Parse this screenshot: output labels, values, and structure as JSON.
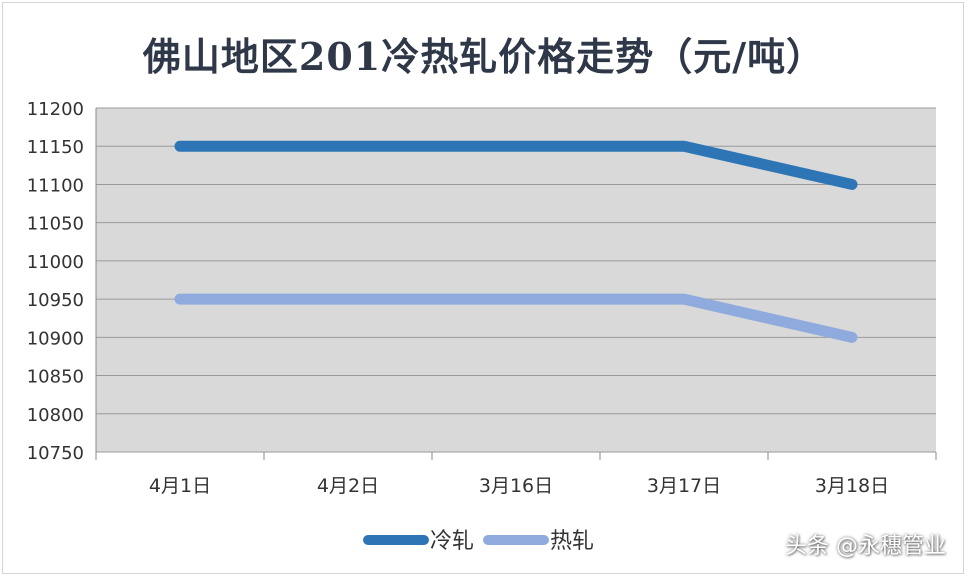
{
  "chart_data": {
    "type": "line",
    "title": "佛山地区201冷热轧价格走势（元/吨）",
    "categories": [
      "4月1日",
      "4月2日",
      "3月16日",
      "3月17日",
      "3月18日"
    ],
    "series": [
      {
        "name": "冷轧",
        "values": [
          11150,
          11150,
          11150,
          11150,
          11100
        ],
        "color": "#2e75b6"
      },
      {
        "name": "热轧",
        "values": [
          10950,
          10950,
          10950,
          10950,
          10900
        ],
        "color": "#8faadc"
      }
    ],
    "ylim": [
      10750,
      11200
    ],
    "yticks": [
      11200,
      11150,
      11100,
      11050,
      11000,
      10950,
      10900,
      10850,
      10800,
      10750
    ],
    "grid": true,
    "plot_background": "#d9d9d9",
    "legend": "bottom"
  },
  "watermark": "头条 @永穗管业"
}
